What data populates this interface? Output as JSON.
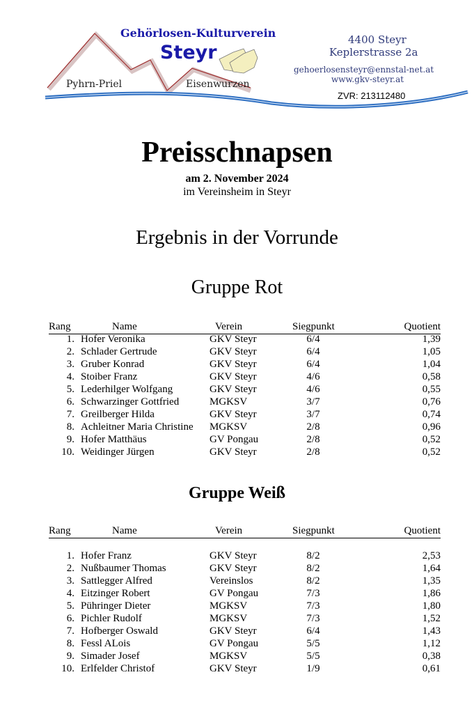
{
  "logo": {
    "club_name": "Gehörlosen-Kulturverein",
    "city": "Steyr",
    "region_left": "Pyhrn-Priel",
    "region_right": "Eisenwurzen",
    "address_line1": "4400 Steyr",
    "address_line2": "Keplerstrasse 2a",
    "email": "gehoerlosensteyr@ennstal-net.at",
    "website": "www.gkv-steyr.at",
    "zvr": "ZVR: 213112480",
    "colors": {
      "blue": "#1a1aa8",
      "slate": "#2f3a7a",
      "red": "#a03030",
      "wave": "#2a6cc0"
    }
  },
  "title": "Preisschnapsen",
  "date": "am 2. November 2024",
  "venue": "im Vereinsheim in Steyr",
  "subtitle": "Ergebnis in der Vorrunde",
  "columns": {
    "rang": "Rang",
    "name": "Name",
    "verein": "Verein",
    "siegpunkt": "Siegpunkt",
    "quotient": "Quotient"
  },
  "groups": [
    {
      "title": "Gruppe Rot",
      "rows": [
        {
          "rang": "1.",
          "name": "Hofer Veronika",
          "verein": "GKV Steyr",
          "siegpunkt": "6/4",
          "quotient": "1,39"
        },
        {
          "rang": "2.",
          "name": "Schlader Gertrude",
          "verein": "GKV Steyr",
          "siegpunkt": "6/4",
          "quotient": "1,05"
        },
        {
          "rang": "3.",
          "name": "Gruber Konrad",
          "verein": "GKV Steyr",
          "siegpunkt": "6/4",
          "quotient": "1,04"
        },
        {
          "rang": "4.",
          "name": "Stoiber Franz",
          "verein": "GKV Steyr",
          "siegpunkt": "4/6",
          "quotient": "0,58"
        },
        {
          "rang": "5.",
          "name": "Lederhilger Wolfgang",
          "verein": "GKV Steyr",
          "siegpunkt": "4/6",
          "quotient": "0,55"
        },
        {
          "rang": "6.",
          "name": "Schwarzinger Gottfried",
          "verein": "MGKSV",
          "siegpunkt": "3/7",
          "quotient": "0,76"
        },
        {
          "rang": "7.",
          "name": "Greilberger Hilda",
          "verein": "GKV Steyr",
          "siegpunkt": "3/7",
          "quotient": "0,74"
        },
        {
          "rang": "8.",
          "name": "Achleitner Maria Christine",
          "verein": "MGKSV",
          "siegpunkt": "2/8",
          "quotient": "0,96"
        },
        {
          "rang": "9.",
          "name": "Hofer Matthäus",
          "verein": "GV Pongau",
          "siegpunkt": "2/8",
          "quotient": "0,52"
        },
        {
          "rang": "10.",
          "name": "Weidinger Jürgen",
          "verein": "GKV Steyr",
          "siegpunkt": "2/8",
          "quotient": "0,52"
        }
      ]
    },
    {
      "title": "Gruppe Weiß",
      "rows": [
        {
          "rang": "1.",
          "name": "Hofer Franz",
          "verein": "GKV Steyr",
          "siegpunkt": "8/2",
          "quotient": "2,53"
        },
        {
          "rang": "2.",
          "name": "Nußbaumer Thomas",
          "verein": "GKV Steyr",
          "siegpunkt": "8/2",
          "quotient": "1,64"
        },
        {
          "rang": "3.",
          "name": "Sattlegger Alfred",
          "verein": "Vereinslos",
          "siegpunkt": "8/2",
          "quotient": "1,35"
        },
        {
          "rang": "4.",
          "name": "Eitzinger Robert",
          "verein": "GV Pongau",
          "siegpunkt": "7/3",
          "quotient": "1,86"
        },
        {
          "rang": "5.",
          "name": "Pühringer Dieter",
          "verein": "MGKSV",
          "siegpunkt": "7/3",
          "quotient": "1,80"
        },
        {
          "rang": "6.",
          "name": "Pichler Rudolf",
          "verein": "MGKSV",
          "siegpunkt": "7/3",
          "quotient": "1,52"
        },
        {
          "rang": "7.",
          "name": "Hofberger Oswald",
          "verein": "GKV Steyr",
          "siegpunkt": "6/4",
          "quotient": "1,43"
        },
        {
          "rang": "8.",
          "name": "Fessl ALois",
          "verein": "GV Pongau",
          "siegpunkt": "5/5",
          "quotient": "1,12"
        },
        {
          "rang": "9.",
          "name": "Simader Josef",
          "verein": "MGKSV",
          "siegpunkt": "5/5",
          "quotient": "0,38"
        },
        {
          "rang": "10.",
          "name": "Erlfelder Christof",
          "verein": "GKV Steyr",
          "siegpunkt": "1/9",
          "quotient": "0,61"
        }
      ]
    }
  ]
}
